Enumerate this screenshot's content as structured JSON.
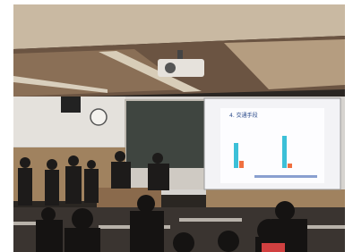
{
  "slide": {
    "title": "4. 交通手段"
  }
}
